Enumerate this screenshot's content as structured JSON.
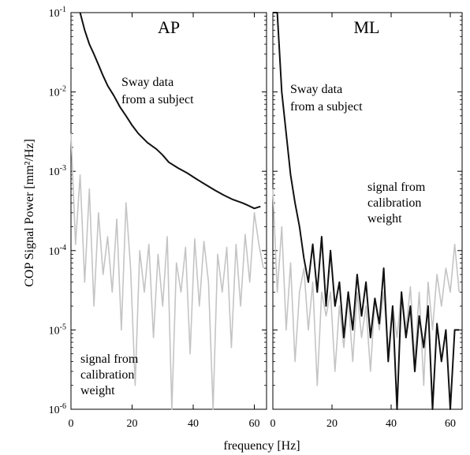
{
  "chart_data": {
    "type": "line",
    "ylabel": "COP Signal Power   [mm²/Hz]",
    "xlabel": "frequency [Hz]",
    "y_scale": "log",
    "ylim": [
      1e-06,
      0.1
    ],
    "xlim": [
      0,
      64
    ],
    "y_ticks": [
      {
        "value": 0.1,
        "base": "10",
        "exp": "-1"
      },
      {
        "value": 0.01,
        "base": "10",
        "exp": "-2"
      },
      {
        "value": 0.001,
        "base": "10",
        "exp": "-3"
      },
      {
        "value": 0.0001,
        "base": "10",
        "exp": "-4"
      },
      {
        "value": 1e-05,
        "base": "10",
        "exp": "-5"
      },
      {
        "value": 1e-06,
        "base": "10",
        "exp": "-6"
      }
    ],
    "x_ticks": [
      {
        "value": 0,
        "label": "0"
      },
      {
        "value": 20,
        "label": "20"
      },
      {
        "value": 40,
        "label": "40"
      },
      {
        "value": 60,
        "label": "60"
      }
    ],
    "colors": {
      "sway": "#111111",
      "calibration": "#c4c4c4"
    },
    "panels": [
      {
        "title": "AP",
        "annotations": [
          {
            "lines": [
              "Sway data",
              "from a subject"
            ],
            "anchor": "sway"
          },
          {
            "lines": [
              "signal from",
              "calibration",
              "weight"
            ],
            "anchor": "calibration"
          }
        ],
        "series": [
          {
            "role": "sway",
            "x": [
              3.0,
              4.5,
              6,
              7.5,
              9,
              10.5,
              12,
              14,
              16,
              18,
              20,
              22,
              25,
              28,
              30,
              32,
              35,
              38,
              41,
              44,
              47,
              50,
              53,
              56,
              58,
              60,
              62
            ],
            "y": [
              0.1,
              0.06,
              0.04,
              0.03,
              0.022,
              0.016,
              0.012,
              0.009,
              0.0065,
              0.005,
              0.0038,
              0.003,
              0.0023,
              0.0019,
              0.0016,
              0.0013,
              0.0011,
              0.00095,
              0.0008,
              0.00068,
              0.00058,
              0.0005,
              0.00044,
              0.0004,
              0.00037,
              0.00034,
              0.00036
            ]
          },
          {
            "role": "calibration",
            "x": [
              0.0,
              1.5,
              3.0,
              4.5,
              6.0,
              7.5,
              9.0,
              10.5,
              12.0,
              13.5,
              15.0,
              16.5,
              18.0,
              19.5,
              21.0,
              22.5,
              24.0,
              25.5,
              27.0,
              28.5,
              30.0,
              31.5,
              33.0,
              34.5,
              36.0,
              37.5,
              39.0,
              40.5,
              42.0,
              43.5,
              45.0,
              46.5,
              48.0,
              49.5,
              51.0,
              52.5,
              54.0,
              55.5,
              57.0,
              58.5,
              60.0,
              61.5,
              63.0
            ],
            "y": [
              0.003,
              0.00012,
              0.0009,
              4e-05,
              0.0006,
              2e-05,
              0.0003,
              5e-05,
              0.00015,
              3e-05,
              0.00025,
              1e-05,
              0.0004,
              6e-05,
              2e-06,
              0.0001,
              3e-05,
              0.00012,
              8e-06,
              9e-05,
              2e-05,
              0.00015,
              1e-06,
              7e-05,
              3e-05,
              0.00011,
              5e-06,
              0.00014,
              2e-05,
              0.00013,
              4e-05,
              1e-06,
              9e-05,
              3e-05,
              0.00011,
              6e-06,
              0.00012,
              2e-05,
              0.00016,
              4e-05,
              0.0003,
              0.00012,
              6e-05
            ]
          }
        ]
      },
      {
        "title": "ML",
        "annotations": [
          {
            "lines": [
              "Sway data",
              "from a subject"
            ],
            "anchor": "sway"
          },
          {
            "lines": [
              "signal from",
              "calibration",
              "weight"
            ],
            "anchor": "calibration"
          }
        ],
        "series": [
          {
            "role": "sway",
            "x": [
              0.0,
              1.5,
              3.0,
              4.5,
              6.0,
              7.5,
              9.0,
              10.5,
              12.0,
              13.5,
              15.0,
              16.5,
              18.0,
              19.5,
              21.0,
              22.5,
              24.0,
              25.5,
              27.0,
              28.5,
              30.0,
              31.5,
              33.0,
              34.5,
              36.0,
              37.5,
              39.0,
              40.5,
              42.0,
              43.5,
              45.0,
              46.5,
              48.0,
              49.5,
              51.0,
              52.5,
              54.0,
              55.5,
              57.0,
              58.5,
              60.0,
              61.5,
              63.0
            ],
            "y": [
              0.1,
              0.1,
              0.01,
              0.003,
              0.0009,
              0.0004,
              0.0002,
              8e-05,
              4e-05,
              0.00012,
              3e-05,
              0.00015,
              2e-05,
              0.0001,
              2e-05,
              4e-05,
              8e-06,
              3e-05,
              1e-05,
              5e-05,
              1.5e-05,
              4e-05,
              8e-06,
              2.5e-05,
              1.2e-05,
              6e-05,
              4e-06,
              2e-05,
              1e-06,
              3e-05,
              8e-06,
              2e-05,
              3e-06,
              1.5e-05,
              6e-06,
              2e-05,
              1e-06,
              1.2e-05,
              4e-06,
              1e-05,
              1e-06,
              1e-05,
              1e-05
            ]
          },
          {
            "role": "calibration",
            "x": [
              0.0,
              1.5,
              3.0,
              4.5,
              6.0,
              7.5,
              9.0,
              10.5,
              12.0,
              13.5,
              15.0,
              16.5,
              18.0,
              19.5,
              21.0,
              22.5,
              24.0,
              25.5,
              27.0,
              28.5,
              30.0,
              31.5,
              33.0,
              34.5,
              36.0,
              37.5,
              39.0,
              40.5,
              42.0,
              43.5,
              45.0,
              46.5,
              48.0,
              49.5,
              51.0,
              52.5,
              54.0,
              55.5,
              57.0,
              58.5,
              60.0,
              61.5,
              63.0
            ],
            "y": [
              0.0006,
              3e-05,
              0.0002,
              1e-05,
              7e-05,
              4e-06,
              3e-05,
              6e-05,
              1e-05,
              4e-05,
              2e-06,
              3e-05,
              1.5e-05,
              3e-05,
              3e-06,
              2e-05,
              6e-06,
              2.5e-05,
              4e-06,
              3e-05,
              8e-06,
              2e-05,
              3e-06,
              2.5e-05,
              1e-05,
              3e-05,
              5e-06,
              2e-05,
              8e-06,
              3e-05,
              1e-05,
              3.5e-05,
              4e-06,
              3e-05,
              2e-06,
              4e-05,
              1e-05,
              5e-05,
              2e-05,
              6e-05,
              3e-05,
              0.00012,
              3e-05
            ]
          }
        ]
      }
    ]
  }
}
